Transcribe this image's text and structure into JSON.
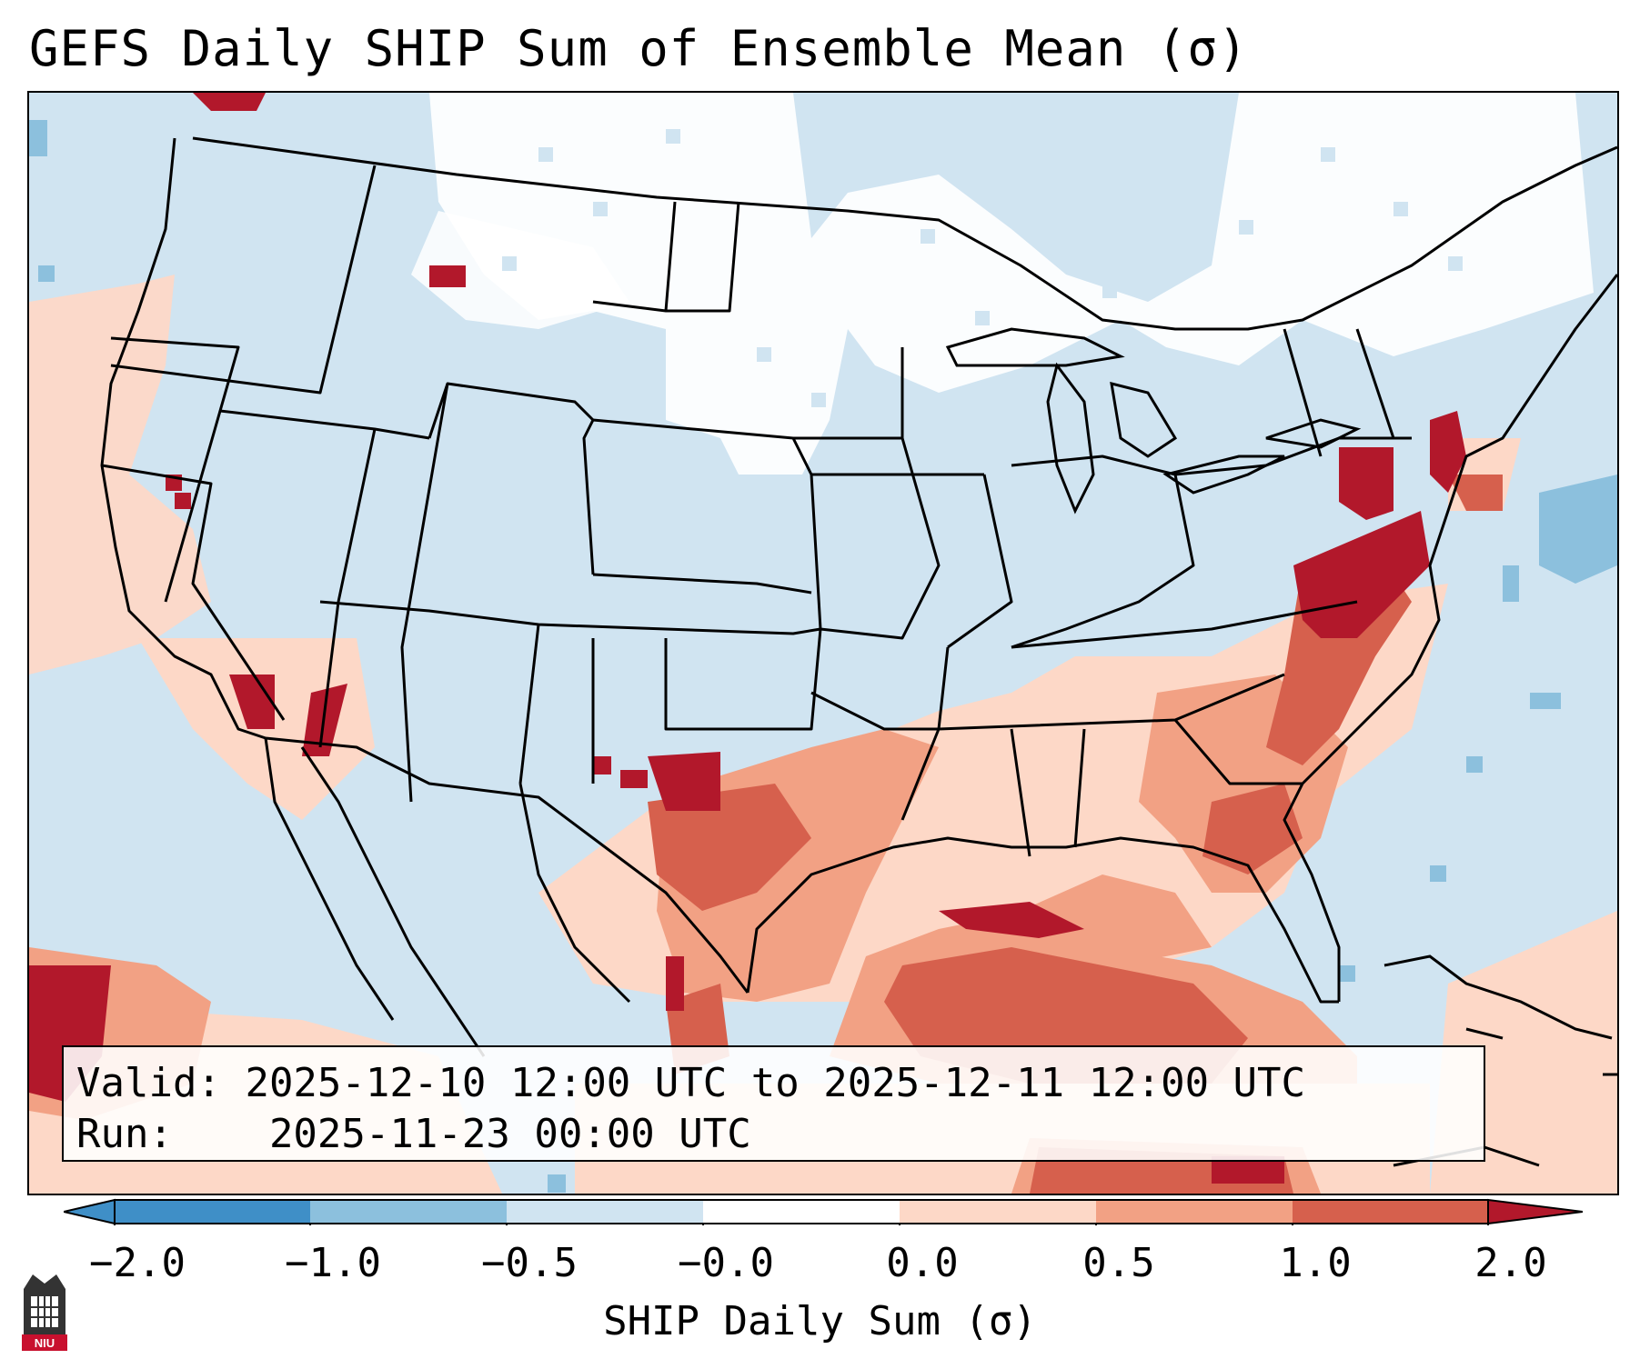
{
  "title": "GEFS Daily SHIP Sum of Ensemble Mean (σ)",
  "info": {
    "valid_label": "Valid:",
    "valid_value": "2025-12-10 12:00 UTC to 2025-12-11 12:00 UTC",
    "run_label": "Run:",
    "run_value": "2025-11-23 00:00 UTC"
  },
  "colorbar": {
    "label": "SHIP Daily Sum (σ)",
    "ticks": [
      "−2.0",
      "−1.0",
      "−0.5",
      "−0.0",
      "0.0",
      "0.5",
      "1.0",
      "2.0"
    ],
    "colors": [
      "#3f8fc7",
      "#8cc0dd",
      "#d0e4f1",
      "#ffffff",
      "#fdd8c7",
      "#f2a184",
      "#d6604d",
      "#b2182b"
    ],
    "under_color": "#3f8fc7",
    "over_color": "#b2182b"
  },
  "logo": {
    "text": "NIU"
  }
}
